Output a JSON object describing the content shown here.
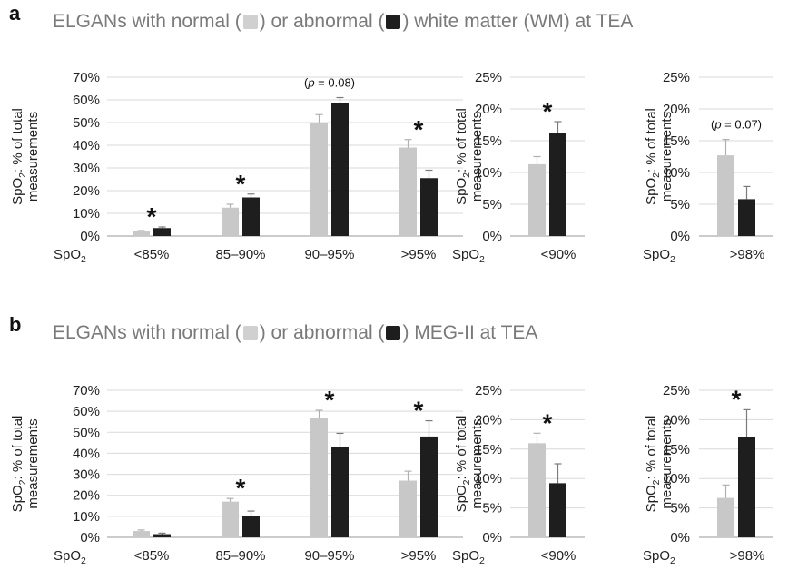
{
  "colors": {
    "normal": "#c8c8c8",
    "abnormal": "#1e1e1e",
    "grid": "#d9d9d9",
    "headline": "#7a7a7a"
  },
  "panels": [
    {
      "letter": "a",
      "headline": {
        "prefix": "ELGANs with normal (",
        "mid": ") or abnormal (",
        "suffix": ") white matter (WM) at TEA"
      },
      "charts": [
        {
          "ylabel": [
            "SpO₂: % of total",
            "measurements"
          ],
          "ylim": [
            0,
            70
          ],
          "ticks": [
            "0%",
            "10%",
            "20%",
            "30%",
            "40%",
            "50%",
            "60%",
            "70%"
          ],
          "x_prefix": "SpO₂",
          "categories": [
            "<85%",
            "85–90%",
            "90–95%",
            ">95%"
          ],
          "normal": [
            2,
            12.5,
            50,
            39
          ],
          "normal_err": [
            0.4,
            1.5,
            3.5,
            3.5
          ],
          "abnormal": [
            3.5,
            17,
            58.5,
            25.5
          ],
          "abnormal_err": [
            0.5,
            1.5,
            2.5,
            3.5
          ],
          "marks": [
            "*",
            "*",
            "(p = 0.08)",
            "*"
          ]
        },
        {
          "ylabel": [
            "SpO₂: % of total",
            "measurements"
          ],
          "ylim": [
            0,
            25
          ],
          "ticks": [
            "0%",
            "5%",
            "10%",
            "15%",
            "20%",
            "25%"
          ],
          "x_prefix": "SpO₂",
          "categories": [
            "<90%"
          ],
          "normal": [
            11.3
          ],
          "normal_err": [
            1.2
          ],
          "abnormal": [
            16.2
          ],
          "abnormal_err": [
            1.8
          ],
          "marks": [
            "*"
          ]
        },
        {
          "ylabel": [
            "SpO₂: % of total",
            "measurements"
          ],
          "ylim": [
            0,
            25
          ],
          "ticks": [
            "0%",
            "5%",
            "10%",
            "15%",
            "20%",
            "25%"
          ],
          "x_prefix": "SpO₂",
          "categories": [
            ">98%"
          ],
          "normal": [
            12.7
          ],
          "normal_err": [
            2.5
          ],
          "abnormal": [
            5.8
          ],
          "abnormal_err": [
            2.0
          ],
          "marks": [
            "(p = 0.07)"
          ]
        }
      ]
    },
    {
      "letter": "b",
      "headline": {
        "prefix": "ELGANs with normal (",
        "mid": ") or abnormal (",
        "suffix": ") MEG-II at TEA"
      },
      "charts": [
        {
          "ylabel": [
            "SpO₂: % of total",
            "measurements"
          ],
          "ylim": [
            0,
            70
          ],
          "ticks": [
            "0%",
            "10%",
            "20%",
            "30%",
            "40%",
            "50%",
            "60%",
            "70%"
          ],
          "x_prefix": "SpO₂",
          "categories": [
            "<85%",
            "85–90%",
            "90–95%",
            ">95%"
          ],
          "normal": [
            3,
            17,
            57,
            27
          ],
          "normal_err": [
            0.5,
            1.5,
            3.5,
            4.5
          ],
          "abnormal": [
            1.5,
            10,
            43,
            48
          ],
          "abnormal_err": [
            0.5,
            2.5,
            6.5,
            7.5
          ],
          "marks": [
            "",
            "*",
            "*",
            "*"
          ]
        },
        {
          "ylabel": [
            "SpO₂: % of total",
            "measurements"
          ],
          "ylim": [
            0,
            25
          ],
          "ticks": [
            "0%",
            "5%",
            "10%",
            "15%",
            "20%",
            "25%"
          ],
          "x_prefix": "SpO₂",
          "categories": [
            "<90%"
          ],
          "normal": [
            16
          ],
          "normal_err": [
            1.7
          ],
          "abnormal": [
            9.2
          ],
          "abnormal_err": [
            3.3
          ],
          "marks": [
            "*"
          ]
        },
        {
          "ylabel": [
            "SpO₂: % of total",
            "measurements"
          ],
          "ylim": [
            0,
            25
          ],
          "ticks": [
            "0%",
            "5%",
            "10%",
            "15%",
            "20%",
            "25%"
          ],
          "x_prefix": "SpO₂",
          "categories": [
            ">98%"
          ],
          "normal": [
            6.7
          ],
          "normal_err": [
            2.2
          ],
          "abnormal": [
            17
          ],
          "abnormal_err": [
            4.7
          ],
          "marks": [
            "*"
          ]
        }
      ]
    }
  ]
}
